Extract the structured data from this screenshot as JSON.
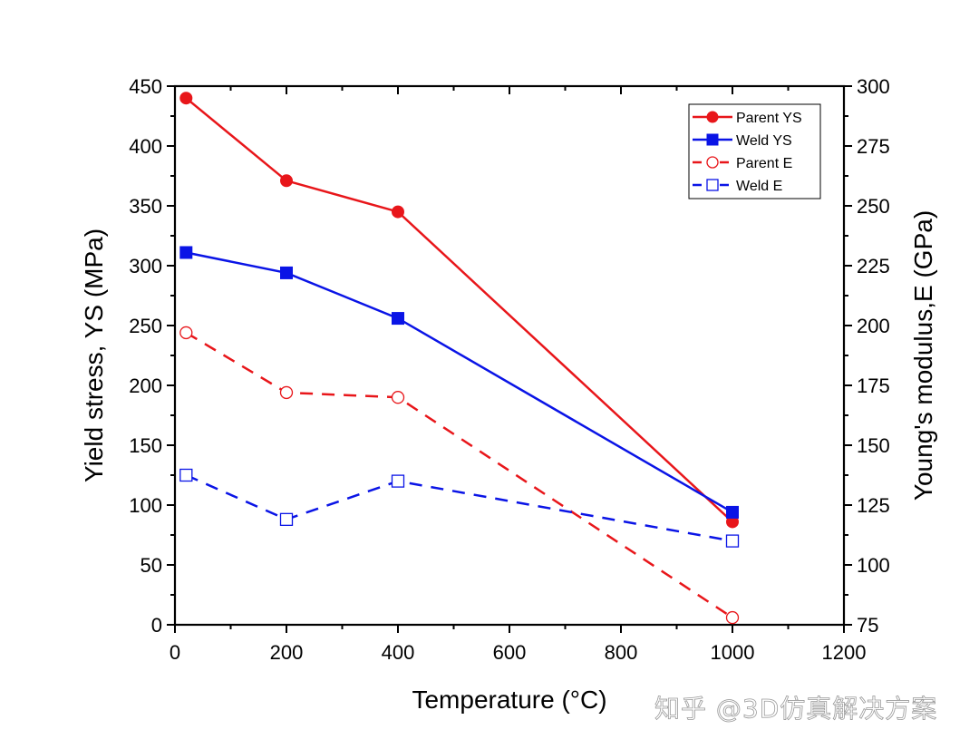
{
  "chart_data": {
    "type": "line",
    "title": "",
    "xlabel": "Temperature (°C)",
    "ylabel": "Yield stress, YS (MPa)",
    "y2label": "Young's modulus,E (GPa)",
    "xlim": [
      0,
      1200
    ],
    "ylim": [
      0,
      450
    ],
    "y2lim": [
      75,
      300
    ],
    "xticks": [
      0,
      200,
      400,
      600,
      800,
      1000,
      1200
    ],
    "yticks": [
      0,
      50,
      100,
      150,
      200,
      250,
      300,
      350,
      400,
      450
    ],
    "y2ticks": [
      75,
      100,
      125,
      150,
      175,
      200,
      225,
      250,
      275,
      300
    ],
    "grid": false,
    "legend_position": "top-right",
    "x": [
      20,
      200,
      400,
      1000
    ],
    "series": [
      {
        "name": "Parent YS",
        "axis": "left",
        "color": "#e8161a",
        "line": "solid",
        "marker": "circle",
        "filled": true,
        "values": [
          440,
          371,
          345,
          86
        ]
      },
      {
        "name": "Weld YS",
        "axis": "left",
        "color": "#0a14e6",
        "line": "solid",
        "marker": "square",
        "filled": true,
        "values": [
          311,
          294,
          256,
          94
        ]
      },
      {
        "name": "Parent E",
        "axis": "right",
        "color": "#e8161a",
        "line": "dashed",
        "marker": "circle",
        "filled": false,
        "values": [
          197,
          172,
          170,
          78
        ]
      },
      {
        "name": "Weld E",
        "axis": "right",
        "color": "#0a14e6",
        "line": "dashed",
        "marker": "square",
        "filled": false,
        "values": [
          137.5,
          119,
          135,
          110
        ]
      }
    ]
  },
  "watermark": "知乎 @3D仿真解决方案"
}
